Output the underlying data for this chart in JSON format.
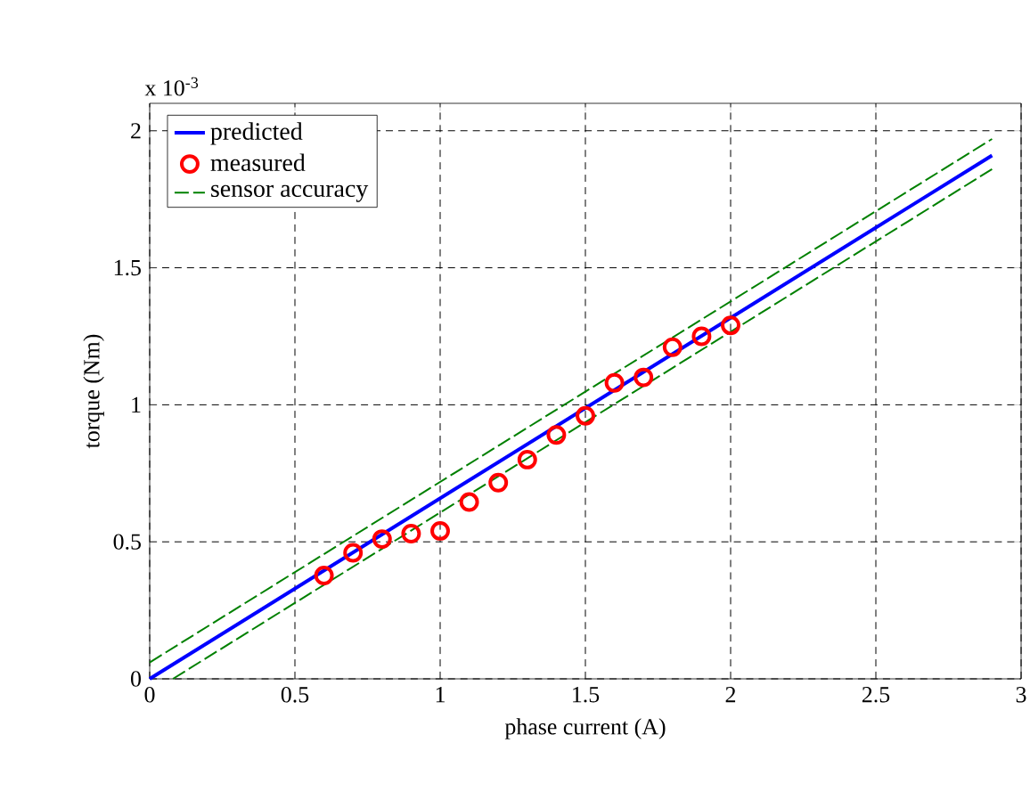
{
  "chart_data": {
    "type": "line",
    "xlabel": "phase current (A)",
    "ylabel": "torque (Nm)",
    "annotations": [
      "x 10$^{-3}$"
    ],
    "xlim": [
      0,
      3
    ],
    "xticks": [
      0,
      0.5,
      1,
      1.5,
      2,
      2.5,
      3
    ],
    "ylim": [
      0,
      2.1
    ],
    "yticks": [
      0,
      0.5,
      1,
      1.5,
      2
    ],
    "grid": true,
    "legend": "top left",
    "series": [
      {
        "name": "predicted",
        "type": "line",
        "color": "#0000ff",
        "x": [
          0,
          2.9
        ],
        "values": [
          0,
          1.91
        ],
        "marker": "none",
        "line_style": "solid"
      },
      {
        "name": "measured",
        "type": "scatter",
        "color": "#ff0000",
        "x": [
          0.6,
          0.7,
          0.8,
          0.9,
          1.0,
          1.1,
          1.2,
          1.3,
          1.4,
          1.5,
          1.6,
          1.7,
          1.8,
          1.9,
          2.0
        ],
        "values": [
          0.377,
          0.46,
          0.51,
          0.53,
          0.54,
          0.645,
          0.716,
          0.8,
          0.89,
          0.96,
          1.08,
          1.1,
          1.21,
          1.25,
          1.29
        ],
        "marker": "circle"
      },
      {
        "name": "sensor accuracy",
        "type": "line",
        "color": "#008000",
        "x": [
          0,
          2.9
        ],
        "values": [
          0.06,
          1.97
        ],
        "marker": "none",
        "line_style": "dashed"
      },
      {
        "type": "line",
        "color": "#008000",
        "x": [
          0.08,
          2.9
        ],
        "values": [
          0,
          1.86
        ],
        "marker": "none",
        "line_style": "dashed"
      }
    ]
  }
}
